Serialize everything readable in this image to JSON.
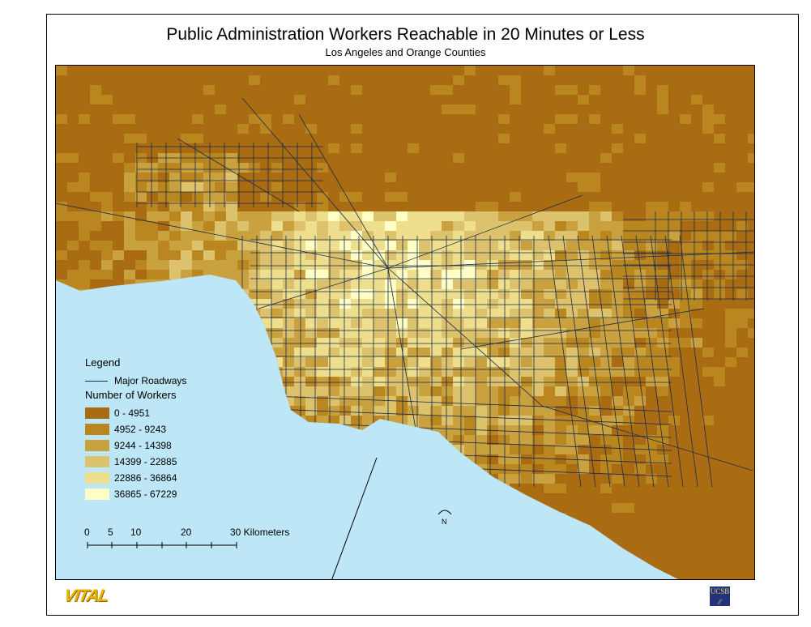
{
  "title": "Public Administration Workers Reachable in 20 Minutes or Less",
  "subtitle": "Los Angeles and Orange Counties",
  "legend": {
    "heading": "Legend",
    "roads_label": "Major Roadways",
    "workers_heading": "Number of Workers",
    "classes": [
      {
        "label": "0 - 4951",
        "color": "#a96c12"
      },
      {
        "label": "4952 - 9243",
        "color": "#b98620"
      },
      {
        "label": "9244 - 14398",
        "color": "#c9a13e"
      },
      {
        "label": "14399 - 22885",
        "color": "#dcc26c"
      },
      {
        "label": "22886 - 36864",
        "color": "#eedf8e"
      },
      {
        "label": "36865 - 67229",
        "color": "#ffffc6"
      }
    ]
  },
  "scale_bar": {
    "ticks": [
      "0",
      "5",
      "10",
      "20",
      "30 Kilometers"
    ]
  },
  "north_arrow": "N",
  "colors": {
    "ocean": "#bde6f7",
    "roads": "#1a2a4a"
  },
  "logos": {
    "left": "VITAL",
    "right": "UCSB"
  }
}
